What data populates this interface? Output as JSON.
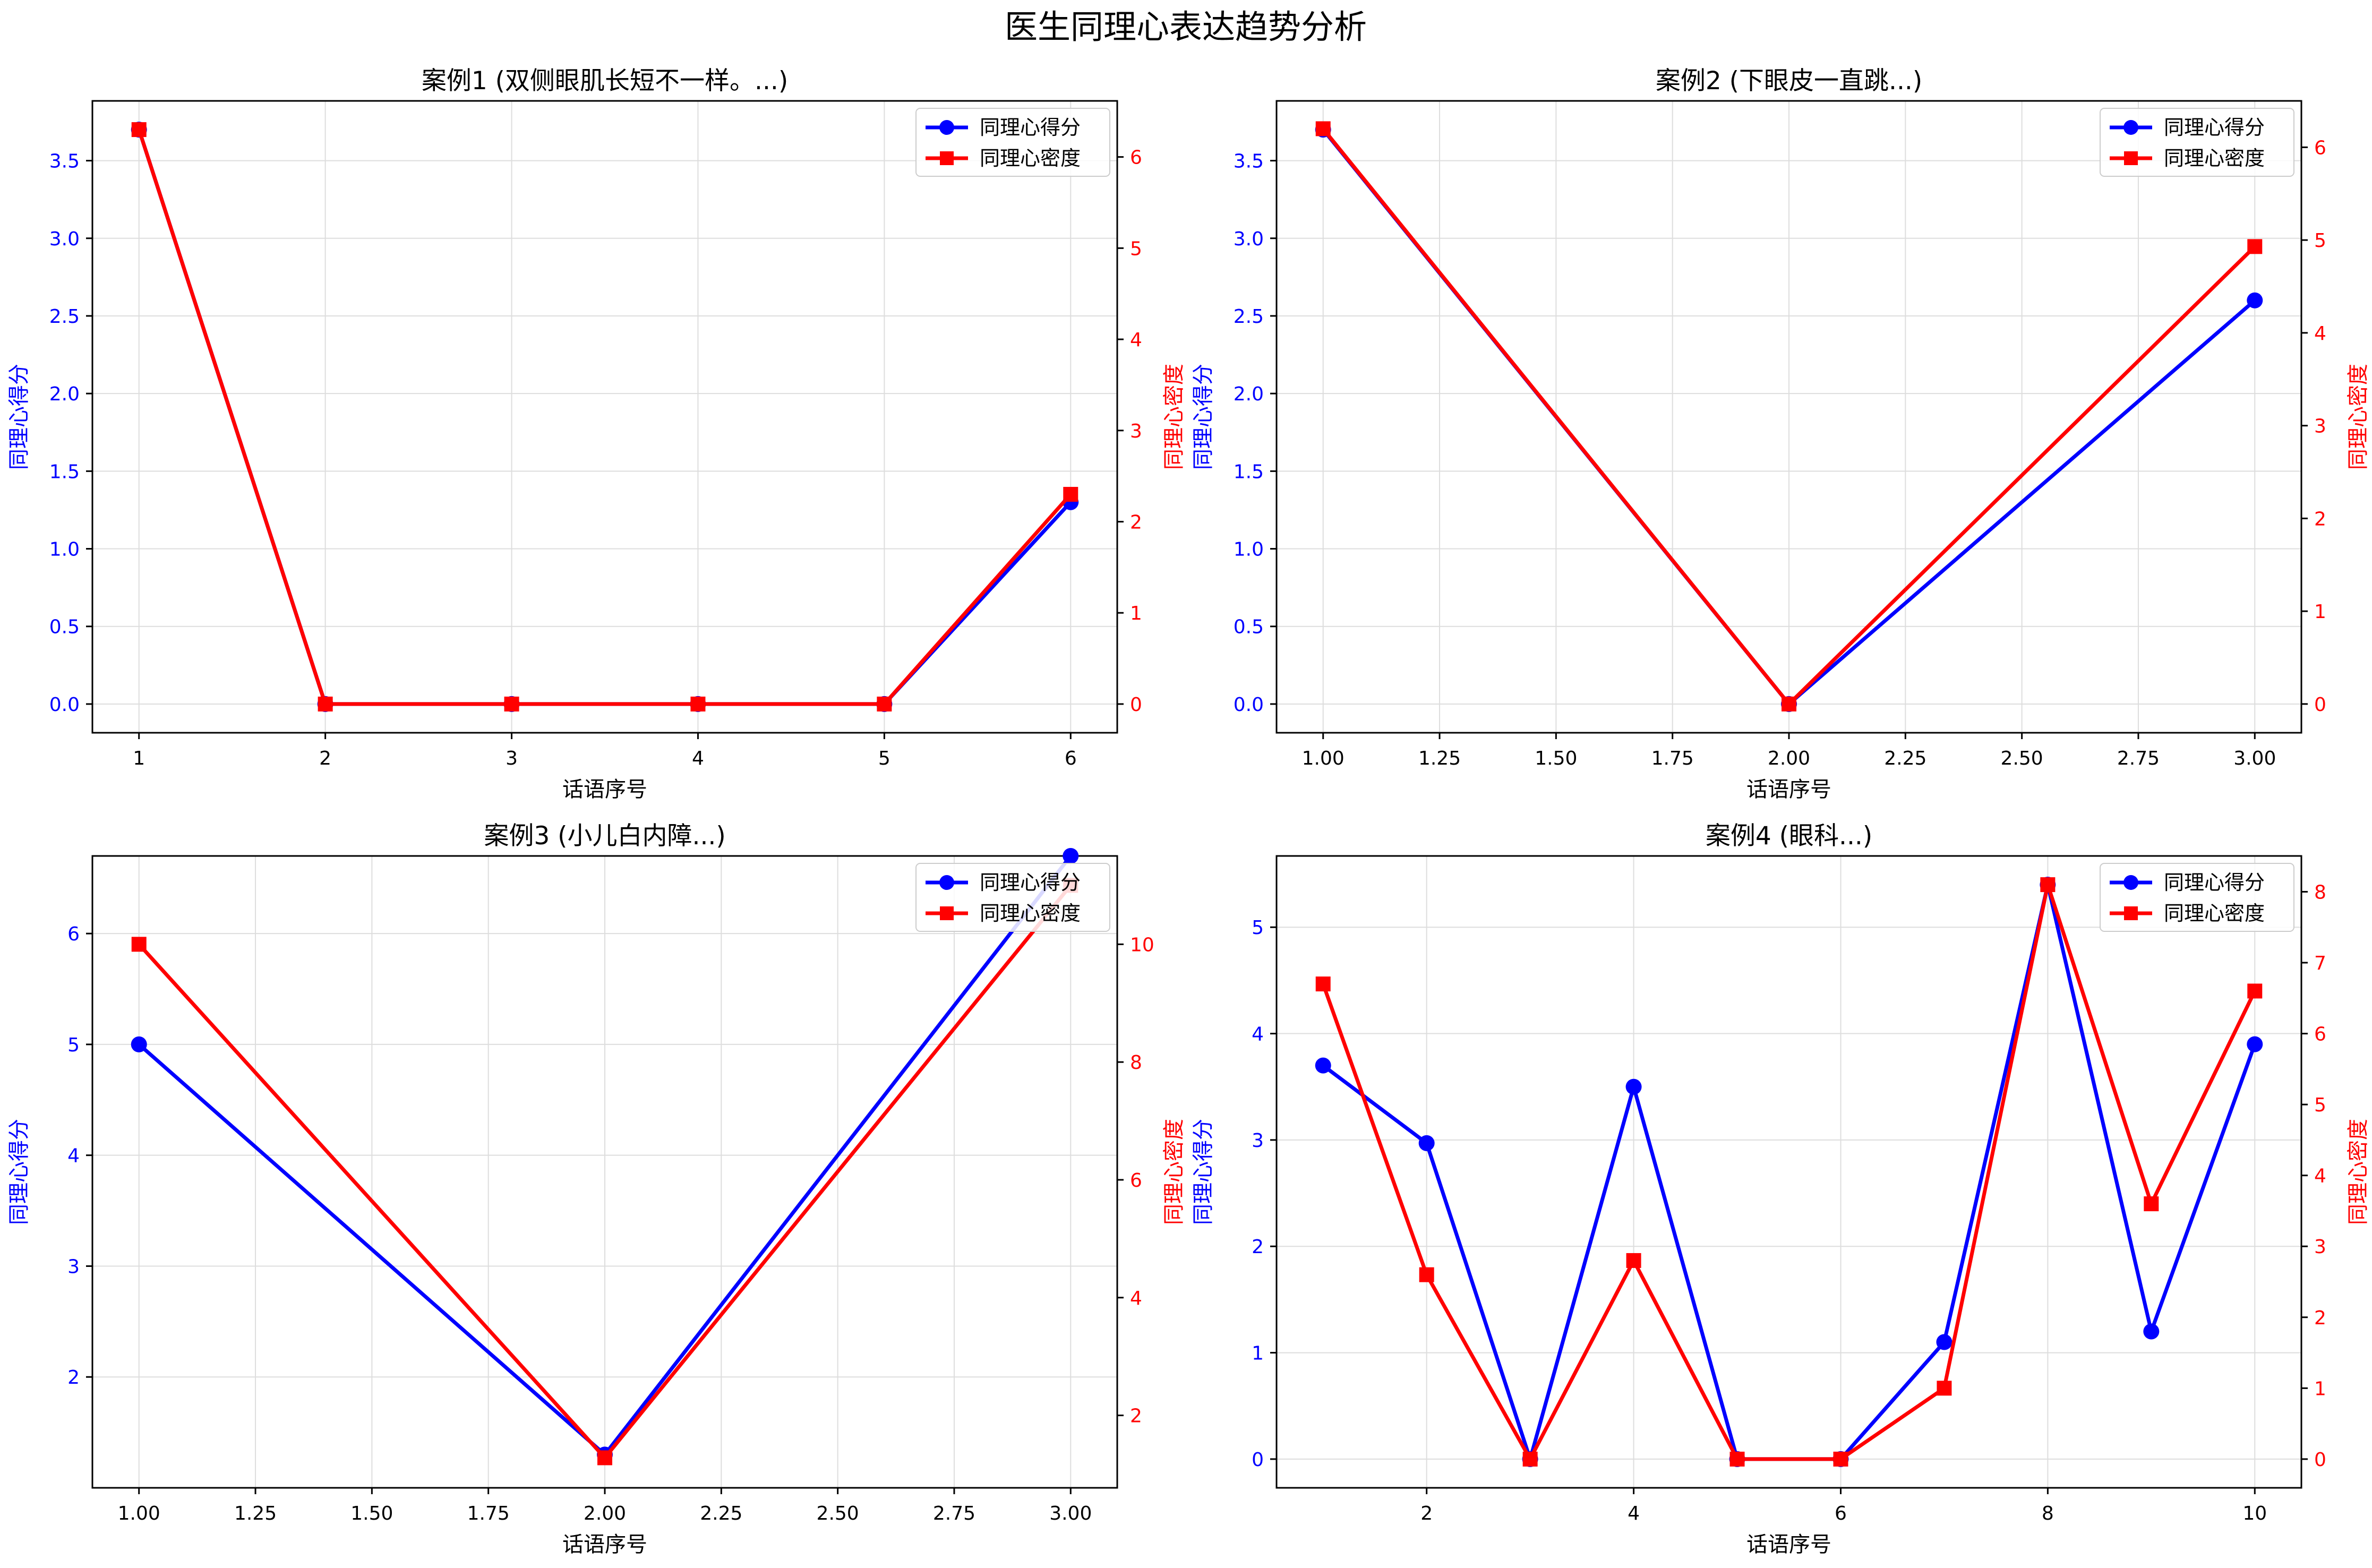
{
  "figure": {
    "title": "医生同理心表达趋势分析",
    "colors": {
      "score": "#0000ff",
      "density": "#ff0000",
      "grid": "#dddddd",
      "axis": "#000000"
    }
  },
  "chart_data": [
    {
      "type": "line",
      "title": "案例1 (双侧眼肌长短不一样。...)",
      "xlabel": "话语序号",
      "ylabel_left": "同理心得分",
      "ylabel_right": "同理心密度",
      "x": [
        1,
        2,
        3,
        4,
        5,
        6
      ],
      "xlim": [
        0.75,
        6.25
      ],
      "xticks": [
        1,
        2,
        3,
        4,
        5,
        6
      ],
      "xtick_labels": [
        "1",
        "2",
        "3",
        "4",
        "5",
        "6"
      ],
      "ylim_left": [
        -0.185,
        3.885
      ],
      "yticks_left": [
        0,
        0.5,
        1,
        1.5,
        2,
        2.5,
        3,
        3.5
      ],
      "ytick_labels_left": [
        "0.0",
        "0.5",
        "1.0",
        "1.5",
        "2.0",
        "2.5",
        "3.0",
        "3.5"
      ],
      "ylim_right": [
        -0.315,
        6.615
      ],
      "yticks_right": [
        0,
        1,
        2,
        3,
        4,
        5,
        6
      ],
      "ytick_labels_right": [
        "0",
        "1",
        "2",
        "3",
        "4",
        "5",
        "6"
      ],
      "series": [
        {
          "name": "同理心得分",
          "axis": "left",
          "marker": "circle",
          "color": "#0000ff",
          "values": [
            3.7,
            0,
            0,
            0,
            0,
            1.3
          ]
        },
        {
          "name": "同理心密度",
          "axis": "right",
          "marker": "square",
          "color": "#ff0000",
          "values": [
            6.3,
            0,
            0,
            0,
            0,
            2.3
          ]
        }
      ],
      "legend": "top-right",
      "grid": true
    },
    {
      "type": "line",
      "title": "案例2 (下眼皮一直跳...)",
      "xlabel": "话语序号",
      "ylabel_left": "同理心得分",
      "ylabel_right": "同理心密度",
      "x": [
        1,
        2,
        3
      ],
      "xlim": [
        0.9,
        3.1
      ],
      "xticks": [
        1,
        1.25,
        1.5,
        1.75,
        2,
        2.25,
        2.5,
        2.75,
        3
      ],
      "xtick_labels": [
        "1.00",
        "1.25",
        "1.50",
        "1.75",
        "2.00",
        "2.25",
        "2.50",
        "2.75",
        "3.00"
      ],
      "ylim_left": [
        -0.185,
        3.885
      ],
      "yticks_left": [
        0,
        0.5,
        1,
        1.5,
        2,
        2.5,
        3,
        3.5
      ],
      "ytick_labels_left": [
        "0.0",
        "0.5",
        "1.0",
        "1.5",
        "2.0",
        "2.5",
        "3.0",
        "3.5"
      ],
      "ylim_right": [
        -0.31,
        6.5
      ],
      "yticks_right": [
        0,
        1,
        2,
        3,
        4,
        5,
        6
      ],
      "ytick_labels_right": [
        "0",
        "1",
        "2",
        "3",
        "4",
        "5",
        "6"
      ],
      "series": [
        {
          "name": "同理心得分",
          "axis": "left",
          "marker": "circle",
          "color": "#0000ff",
          "values": [
            3.7,
            0,
            2.6
          ]
        },
        {
          "name": "同理心密度",
          "axis": "right",
          "marker": "square",
          "color": "#ff0000",
          "values": [
            6.2,
            0,
            4.93
          ]
        }
      ],
      "legend": "top-right",
      "grid": true
    },
    {
      "type": "line",
      "title": "案例3 (小儿白内障...)",
      "xlabel": "话语序号",
      "ylabel_left": "同理心得分",
      "ylabel_right": "同理心密度",
      "x": [
        1,
        2,
        3
      ],
      "xlim": [
        0.9,
        3.1
      ],
      "xticks": [
        1,
        1.25,
        1.5,
        1.75,
        2,
        2.25,
        2.5,
        2.75,
        3
      ],
      "xtick_labels": [
        "1.00",
        "1.25",
        "1.50",
        "1.75",
        "2.00",
        "2.25",
        "2.50",
        "2.75",
        "3.00"
      ],
      "ylim_left": [
        1.0,
        6.7
      ],
      "yticks_left": [
        2,
        3,
        4,
        5,
        6
      ],
      "ytick_labels_left": [
        "2",
        "3",
        "4",
        "5",
        "6"
      ],
      "ylim_right": [
        0.77,
        11.5
      ],
      "yticks_right": [
        2,
        4,
        6,
        8,
        10
      ],
      "ytick_labels_right": [
        "2",
        "4",
        "6",
        "8",
        "10"
      ],
      "series": [
        {
          "name": "同理心得分",
          "axis": "left",
          "marker": "circle",
          "color": "#0000ff",
          "values": [
            5.0,
            1.3,
            6.7
          ]
        },
        {
          "name": "同理心密度",
          "axis": "right",
          "marker": "square",
          "color": "#ff0000",
          "values": [
            10.0,
            1.28,
            11.0
          ]
        }
      ],
      "legend": "top-right",
      "grid": true
    },
    {
      "type": "line",
      "title": "案例4 (眼科...)",
      "xlabel": "话语序号",
      "ylabel_left": "同理心得分",
      "ylabel_right": "同理心密度",
      "x": [
        1,
        2,
        3,
        4,
        5,
        6,
        7,
        8,
        9,
        10
      ],
      "xlim": [
        0.55,
        10.45
      ],
      "xticks": [
        2,
        4,
        6,
        8,
        10
      ],
      "xtick_labels": [
        "2",
        "4",
        "6",
        "8",
        "10"
      ],
      "ylim_left": [
        -0.27,
        5.67
      ],
      "yticks_left": [
        0,
        1,
        2,
        3,
        4,
        5
      ],
      "ytick_labels_left": [
        "0",
        "1",
        "2",
        "3",
        "4",
        "5"
      ],
      "ylim_right": [
        -0.405,
        8.505
      ],
      "yticks_right": [
        0,
        1,
        2,
        3,
        4,
        5,
        6,
        7,
        8
      ],
      "ytick_labels_right": [
        "0",
        "1",
        "2",
        "3",
        "4",
        "5",
        "6",
        "7",
        "8"
      ],
      "series": [
        {
          "name": "同理心得分",
          "axis": "left",
          "marker": "circle",
          "color": "#0000ff",
          "values": [
            3.7,
            2.97,
            0,
            3.5,
            0,
            0,
            1.1,
            5.4,
            1.2,
            3.9
          ]
        },
        {
          "name": "同理心密度",
          "axis": "right",
          "marker": "square",
          "color": "#ff0000",
          "values": [
            6.7,
            2.6,
            0,
            2.8,
            0,
            0,
            1.0,
            8.1,
            3.6,
            6.6
          ]
        }
      ],
      "legend": "top-right",
      "grid": true
    }
  ]
}
